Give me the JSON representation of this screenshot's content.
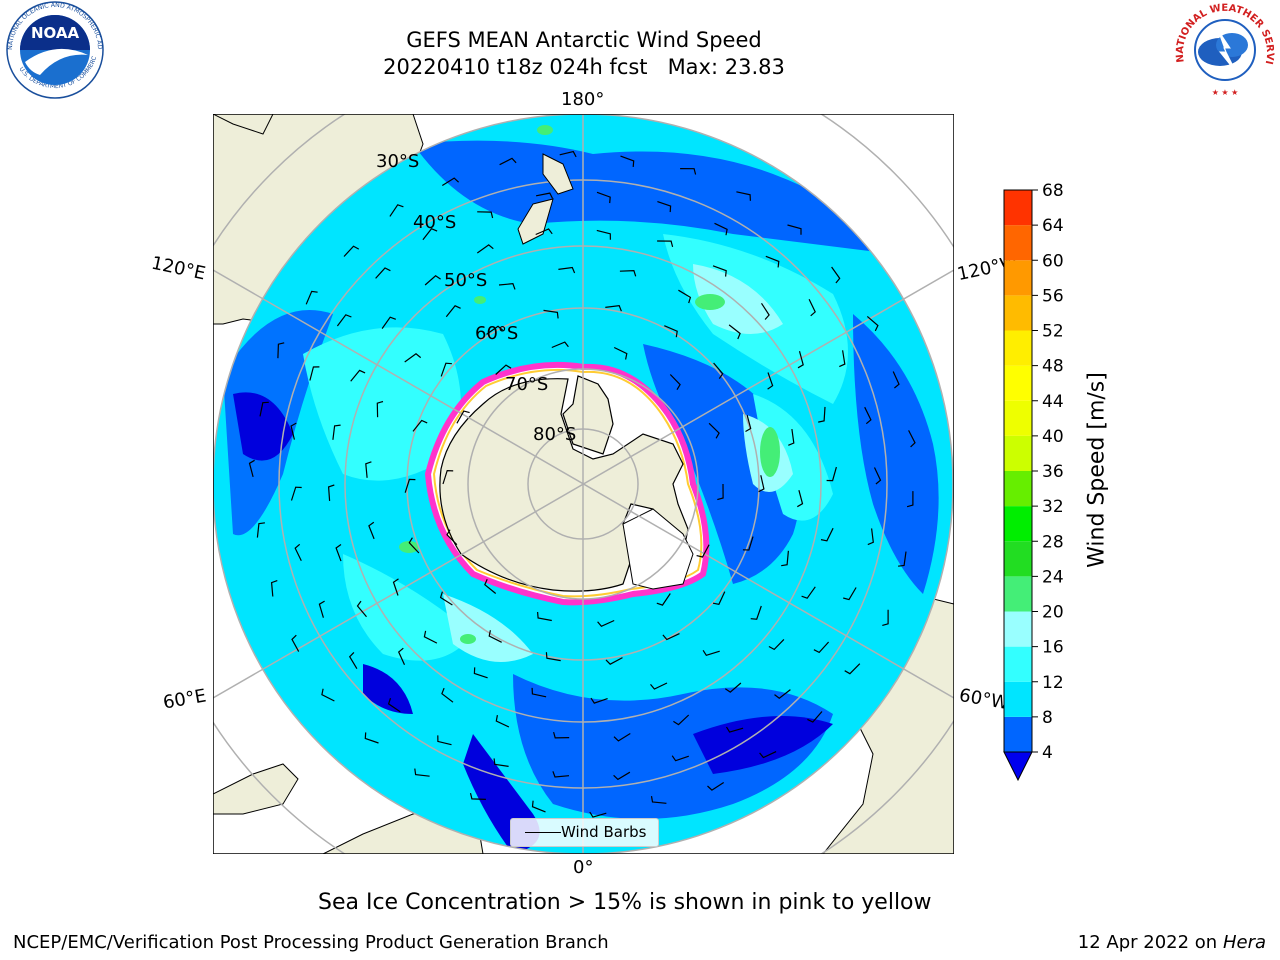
{
  "title": {
    "line1": "GEFS MEAN Antarctic Wind Speed",
    "line2": "20220410 t18z 024h fcst   Max: 23.83"
  },
  "map": {
    "projection": "south-polar-stereographic",
    "longitude_labels": {
      "top": "180°",
      "bottom": "0°",
      "upper_left": "120°E",
      "upper_right": "120°W",
      "lower_left": "60°E",
      "lower_right": "60°W"
    },
    "latitude_labels": [
      "30°S",
      "40°S",
      "50°S",
      "60°S",
      "70°S",
      "80°S"
    ],
    "legend": {
      "label": "Wind Barbs"
    },
    "colors": {
      "land": "#eeeed9",
      "ocean_4_8": "#0066ff",
      "ocean_8_12": "#00e5ff",
      "ocean_12_16": "#33ffff",
      "ocean_16_20": "#99ffff",
      "ocean_20_24": "#44ee77",
      "strong_below_4": "#0000dd",
      "sea_ice_edge": "#ff33cc",
      "sea_ice_inner": "#ffcc33",
      "graticule": "#b0b0b0"
    }
  },
  "colorbar": {
    "title": "Wind Speed [m/s]",
    "ticks": [
      "4",
      "8",
      "12",
      "16",
      "20",
      "24",
      "28",
      "32",
      "36",
      "40",
      "44",
      "48",
      "52",
      "56",
      "60",
      "64",
      "68"
    ],
    "colors": [
      "#0066ff",
      "#00e5ff",
      "#33ffff",
      "#99ffff",
      "#44ee77",
      "#22dd22",
      "#00ee00",
      "#66ee00",
      "#ccff00",
      "#eeff00",
      "#ffff00",
      "#ffee00",
      "#ffbb00",
      "#ff9900",
      "#ff6600",
      "#ff3300",
      "#ff0000"
    ],
    "extend_color": "#0000ee"
  },
  "subtitle": "Sea Ice Concentration > 15% is shown in pink to yellow",
  "footer": {
    "left": "NCEP/EMC/Verification Post Processing Product Generation Branch",
    "right_prefix": "12 Apr 2022 on ",
    "right_machine": "Hera"
  },
  "logos": {
    "noaa_text": "NOAA",
    "noaa_ring": "NATIONAL OCEANIC AND ATMOSPHERIC ADMINISTRATION",
    "noaa_ring_bottom": "U.S. DEPARTMENT OF COMMERCE",
    "nws_ring": "NATIONAL WEATHER SERVICE"
  }
}
